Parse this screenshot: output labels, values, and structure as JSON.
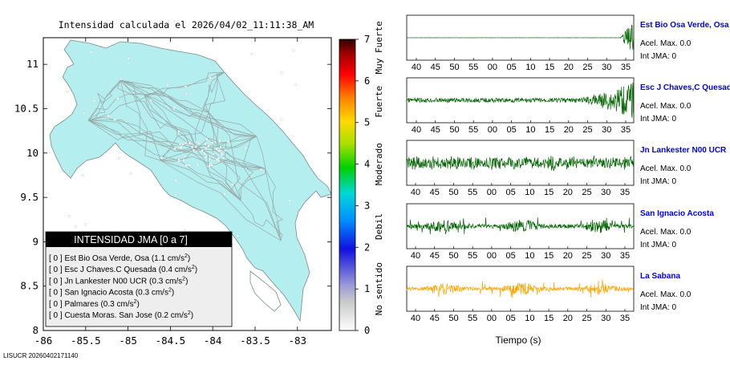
{
  "map": {
    "title": "Intensidad calculada el 2026/04/02_11:11:38_AM",
    "xticks": [
      "-86",
      "-85.5",
      "-85",
      "-84.5",
      "-84",
      "-83.5",
      "-83"
    ],
    "xtick_values": [
      -86,
      -85.5,
      -85,
      -84.5,
      -84,
      -83.5,
      -83
    ],
    "yticks": [
      "11",
      "10.5",
      "10",
      "9.5",
      "9",
      "8.5",
      "8"
    ],
    "ytick_values": [
      11,
      10.5,
      10,
      9.5,
      9,
      8.5,
      8
    ],
    "xlim": [
      -86,
      -82.6
    ],
    "ylim": [
      8,
      11.3
    ],
    "land_color": "#b4eeee",
    "footer": "LISUCR 20260402171140"
  },
  "legend": {
    "title": "INTENSIDAD JMA [0 a 7]",
    "items": [
      {
        "text": "[ 0 ]  Est Bio Osa Verde, Osa (1.1 cm/s",
        "sup": "2",
        "close": ")"
      },
      {
        "text": "[ 0 ]  Esc J Chaves.C Quesada (0.4 cm/s",
        "sup": "2",
        "close": ")"
      },
      {
        "text": "[ 0 ]  Jn Lankester N00 UCR (0.3 cm/s",
        "sup": "2",
        "close": ")"
      },
      {
        "text": "[ 0 ]  San Ignacio Acosta (0.3 cm/s",
        "sup": "2",
        "close": ")"
      },
      {
        "text": "[ 0 ]  Palmares (0.3 cm/s",
        "sup": "2",
        "close": ")"
      },
      {
        "text": "[ 0 ]  Cuesta Moras. San Jose (0.2 cm/s",
        "sup": "2",
        "close": ")"
      }
    ]
  },
  "colorbar": {
    "ticks": [
      "0",
      "1",
      "2",
      "3",
      "4",
      "5",
      "6",
      "7"
    ],
    "labels": [
      {
        "text": "No sentido",
        "at": 1
      },
      {
        "text": "Debil",
        "at": 2.5
      },
      {
        "text": "Moderado",
        "at": 4
      },
      {
        "text": "Fuerte",
        "at": 5.5
      },
      {
        "text": "Muy Fuerte",
        "at": 6.8
      }
    ]
  },
  "chart_data": [
    {
      "type": "line",
      "title": "Est Bio Osa Verde, Osa",
      "accel_label": "Acel. Max. 0.0",
      "int_label": "Int JMA: 0",
      "color": "#006400",
      "profile": "late",
      "amplitude": 0.9,
      "x_tick_labels": [
        "40",
        "45",
        "50",
        "55",
        "00",
        "05",
        "10",
        "15",
        "20",
        "25",
        "30",
        "35"
      ]
    },
    {
      "type": "line",
      "title": "Esc J Chaves,C Quesada",
      "accel_label": "Acel. Max. 0.0",
      "int_label": "Int JMA: 0",
      "color": "#006400",
      "profile": "growing",
      "amplitude": 0.9,
      "x_tick_labels": [
        "40",
        "45",
        "50",
        "55",
        "00",
        "05",
        "10",
        "15",
        "20",
        "25",
        "30",
        "35"
      ]
    },
    {
      "type": "line",
      "title": "Jn Lankester N00 UCR",
      "accel_label": "Acel. Max. 0.0",
      "int_label": "Int JMA: 0",
      "color": "#006400",
      "profile": "noisy",
      "amplitude": 0.55,
      "x_tick_labels": [
        "40",
        "45",
        "50",
        "55",
        "00",
        "05",
        "10",
        "15",
        "20",
        "25",
        "30",
        "35"
      ]
    },
    {
      "type": "line",
      "title": "San Ignacio Acosta",
      "accel_label": "Acel. Max. 0.0",
      "int_label": "Int JMA: 0",
      "color": "#006400",
      "profile": "bursty",
      "amplitude": 0.55,
      "x_tick_labels": [
        "40",
        "45",
        "50",
        "55",
        "00",
        "05",
        "10",
        "15",
        "20",
        "25",
        "30",
        "35"
      ]
    },
    {
      "type": "line",
      "title": "La Sabana",
      "accel_label": "Acel. Max. 0.0",
      "int_label": "Int JMA: 0",
      "color": "#ffa500",
      "profile": "bursty",
      "amplitude": 0.5,
      "x_tick_labels": [
        "40",
        "45",
        "50",
        "55",
        "00",
        "05",
        "10",
        "15",
        "20",
        "25",
        "30",
        "35"
      ]
    }
  ],
  "waveform_xlabel": "Tiempo (s)"
}
